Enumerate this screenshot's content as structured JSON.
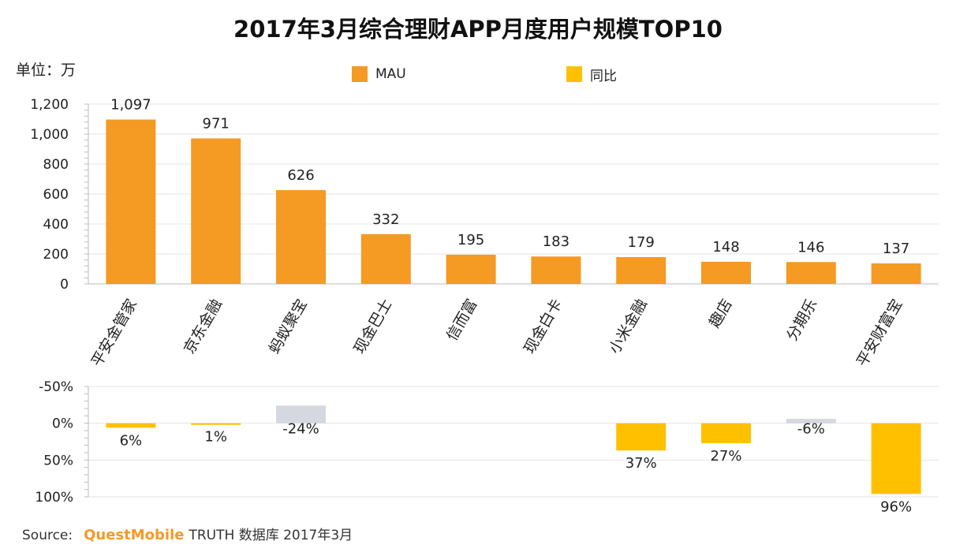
{
  "title": "2017年3月综合理财APP月度用户规模TOP10",
  "unit": "单位：万",
  "legend": [
    {
      "label": "MAU",
      "color": "#F59A23"
    },
    {
      "label": "同比",
      "color": "#FFC000"
    }
  ],
  "source": {
    "label": "Source:",
    "brand": "QuestMobile",
    "text": "TRUTH 数据库 2017年3月"
  },
  "colors": {
    "mau": "#F59A23",
    "yoy_positive": "#FFC000",
    "yoy_negative": "#D5D8DE",
    "grid": "#E4E4E4",
    "axis": "#BBBBBB"
  },
  "chart_data": [
    {
      "type": "bar",
      "name": "MAU",
      "unit": "万",
      "categories": [
        "平安金管家",
        "京东金融",
        "蚂蚁聚宝",
        "现金巴士",
        "信而富",
        "现金白卡",
        "小米金融",
        "趣店",
        "分期乐",
        "平安财富宝"
      ],
      "values": [
        1097,
        971,
        626,
        332,
        195,
        183,
        179,
        148,
        146,
        137
      ],
      "value_labels": [
        "1,097",
        "971",
        "626",
        "332",
        "195",
        "183",
        "179",
        "148",
        "146",
        "137"
      ],
      "ylim": [
        0,
        1200
      ],
      "yticks": [
        0,
        200,
        400,
        600,
        800,
        1000,
        1200
      ],
      "ytick_labels": [
        "0",
        "200",
        "400",
        "600",
        "800",
        "1,000",
        "1,200"
      ]
    },
    {
      "type": "bar",
      "name": "同比",
      "categories": [
        "平安金管家",
        "京东金融",
        "蚂蚁聚宝",
        "现金巴士",
        "信而富",
        "现金白卡",
        "小米金融",
        "趣店",
        "分期乐",
        "平安财富宝"
      ],
      "values": [
        6,
        1,
        -24,
        null,
        null,
        null,
        37,
        27,
        -6,
        96
      ],
      "value_labels": [
        "6%",
        "1%",
        "-24%",
        "",
        "",
        "",
        "37%",
        "27%",
        "-6%",
        "96%"
      ],
      "ylim": [
        -50,
        100
      ],
      "yaxis_inverted": true,
      "yticks": [
        -50,
        0,
        50,
        100
      ],
      "ytick_labels": [
        "-50%",
        "0%",
        "50%",
        "100%"
      ]
    }
  ]
}
